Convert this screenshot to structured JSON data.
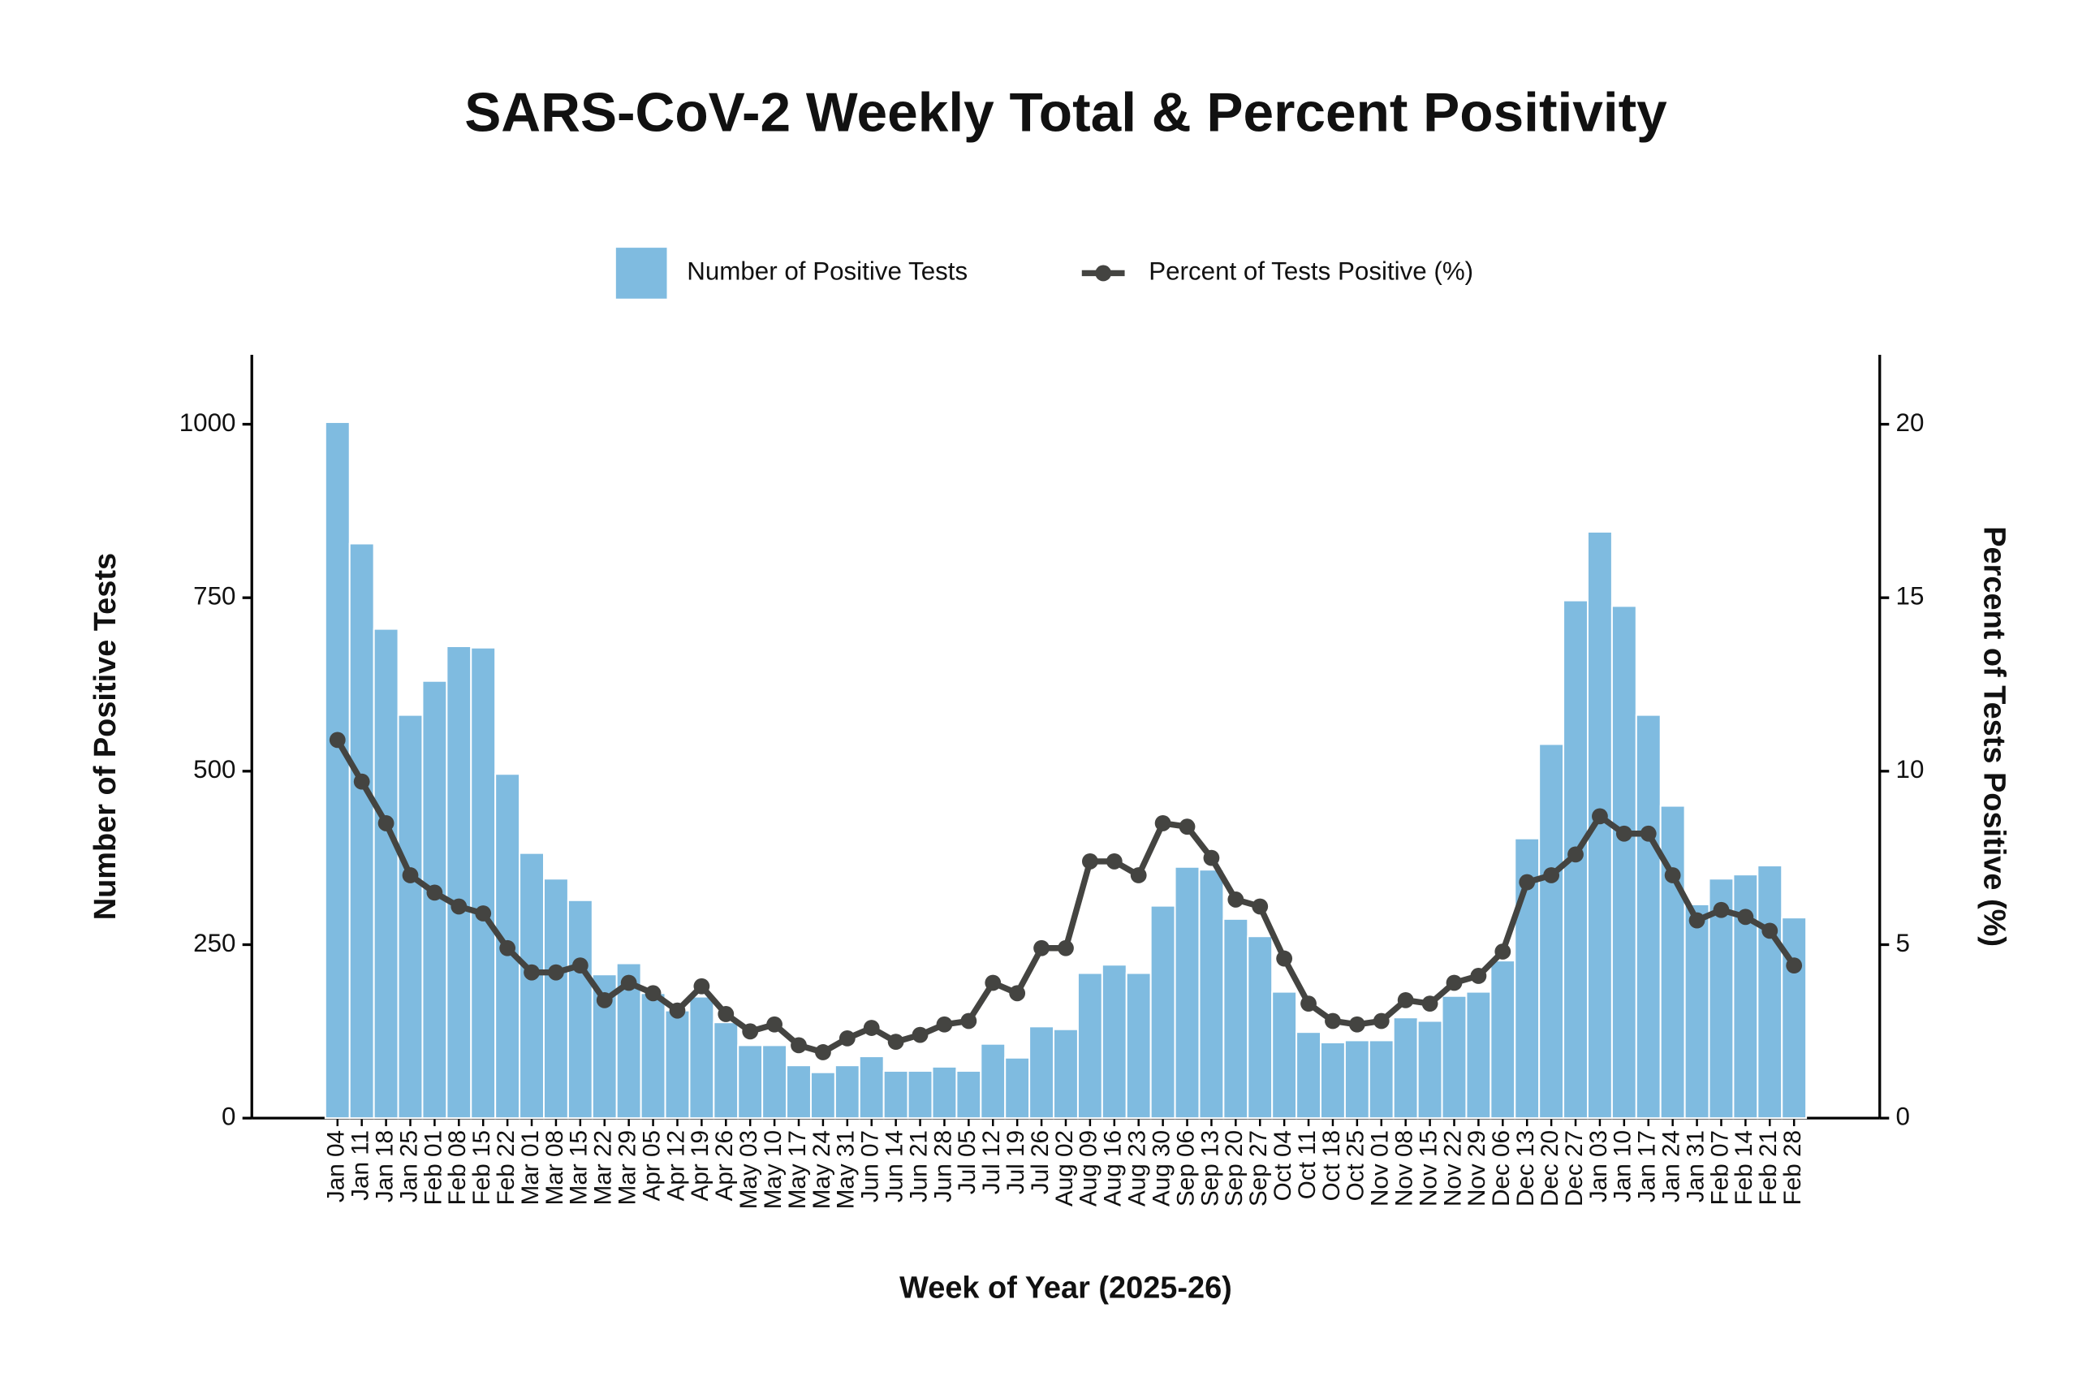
{
  "chart_data": {
    "type": "bar",
    "title": "SARS-CoV-2 Weekly Total & Percent Positivity",
    "x_label": "Week of Year (2025-26)",
    "y_label": "Number of Positive Tests",
    "y2_label": "Percent of Tests Positive (%)",
    "categories": [
      "Jan 04",
      "Jan 11",
      "Jan 18",
      "Jan 25",
      "Feb 01",
      "Feb 08",
      "Feb 15",
      "Feb 22",
      "Mar 01",
      "Mar 08",
      "Mar 15",
      "Mar 22",
      "Mar 29",
      "Apr 05",
      "Apr 12",
      "Apr 19",
      "Apr 26",
      "May 03",
      "May 10",
      "May 17",
      "May 24",
      "May 31",
      "Jun 07",
      "Jun 14",
      "Jun 21",
      "Jun 28",
      "Jul 05",
      "Jul 12",
      "Jul 19",
      "Jul 26",
      "Aug 02",
      "Aug 09",
      "Aug 16",
      "Aug 23",
      "Aug 30",
      "Sep 06",
      "Sep 13",
      "Sep 20",
      "Sep 27",
      "Oct 04",
      "Oct 11",
      "Oct 18",
      "Oct 25",
      "Nov 01",
      "Nov 08",
      "Nov 15",
      "Nov 22",
      "Nov 29",
      "Dec 06",
      "Dec 13",
      "Dec 20",
      "Dec 27",
      "Jan 03",
      "Jan 10",
      "Jan 17",
      "Jan 24",
      "Jan 31",
      "Feb 07",
      "Feb 14",
      "Feb 21",
      "Feb 28"
    ],
    "series": [
      {
        "name": "Number of Positive Tests",
        "type": "bar",
        "color": "#7fbbe0",
        "values": [
          1003,
          828,
          705,
          581,
          630,
          680,
          678,
          496,
          382,
          345,
          314,
          207,
          223,
          180,
          155,
          175,
          138,
          105,
          105,
          76,
          66,
          76,
          89,
          68,
          68,
          74,
          68,
          107,
          87,
          132,
          128,
          209,
          221,
          209,
          306,
          362,
          358,
          287,
          262,
          182,
          124,
          109,
          112,
          112,
          145,
          140,
          176,
          182,
          227,
          403,
          539,
          746,
          845,
          738,
          581,
          450,
          308,
          345,
          351,
          364,
          289
        ]
      },
      {
        "name": "Percent of Tests Positive (%)",
        "type": "line",
        "axis": "y2",
        "color": "#444441",
        "values": [
          10.9,
          9.7,
          8.5,
          7.0,
          6.5,
          6.1,
          5.9,
          4.9,
          4.2,
          4.2,
          4.4,
          3.4,
          3.9,
          3.6,
          3.1,
          3.8,
          3.0,
          2.5,
          2.7,
          2.1,
          1.9,
          2.3,
          2.6,
          2.2,
          2.4,
          2.7,
          2.8,
          3.9,
          3.6,
          4.9,
          4.9,
          7.4,
          7.4,
          7.0,
          8.5,
          8.4,
          7.5,
          6.3,
          6.1,
          4.6,
          3.3,
          2.8,
          2.7,
          2.8,
          3.4,
          3.3,
          3.9,
          4.1,
          4.8,
          6.8,
          7.0,
          7.6,
          8.7,
          8.2,
          8.2,
          7.0,
          5.7,
          6.0,
          5.8,
          5.4,
          4.4
        ]
      }
    ],
    "ylim": [
      0,
      1100
    ],
    "yticks": [
      0,
      250,
      500,
      750,
      1000
    ],
    "y2lim": [
      0,
      22
    ],
    "y2ticks": [
      0,
      5,
      10,
      15,
      20
    ],
    "legend": "top"
  }
}
